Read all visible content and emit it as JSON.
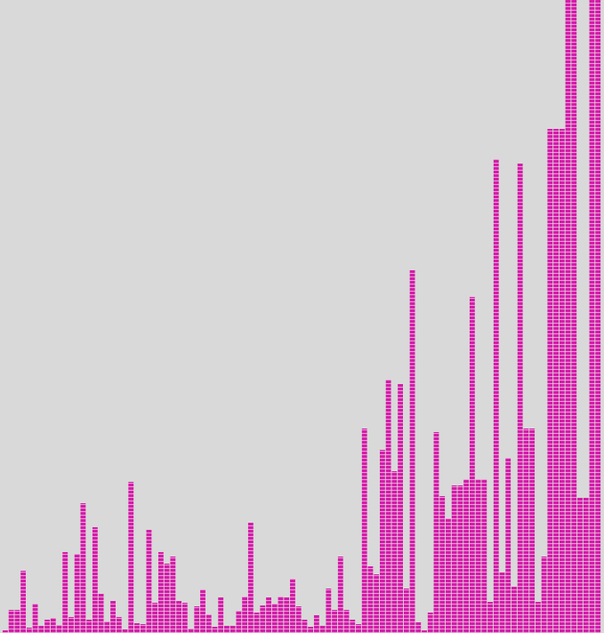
{
  "chart_data": {
    "type": "bar",
    "title": "",
    "xlabel": "",
    "ylabel": "",
    "grid": false,
    "legend": "none",
    "bar_color": "#d21ea8",
    "background_color": "#d9d9d9",
    "segment_gap_color": "#ffffff",
    "ylim": [
      0,
      712
    ],
    "values": [
      3,
      26,
      26,
      70,
      6,
      33,
      8,
      15,
      17,
      9,
      91,
      18,
      89,
      146,
      15,
      119,
      44,
      13,
      36,
      18,
      4,
      170,
      11,
      10,
      116,
      34,
      91,
      78,
      86,
      36,
      34,
      5,
      30,
      49,
      21,
      7,
      40,
      8,
      8,
      25,
      41,
      124,
      23,
      31,
      40,
      33,
      41,
      40,
      61,
      30,
      15,
      7,
      20,
      8,
      50,
      26,
      86,
      26,
      15,
      10,
      230,
      75,
      66,
      206,
      285,
      182,
      280,
      50,
      408,
      12,
      3,
      23,
      226,
      154,
      129,
      166,
      166,
      173,
      378,
      173,
      173,
      35,
      533,
      68,
      197,
      52,
      528,
      230,
      230,
      35,
      86,
      567,
      567,
      567,
      712,
      712,
      152,
      152,
      712,
      712
    ]
  }
}
